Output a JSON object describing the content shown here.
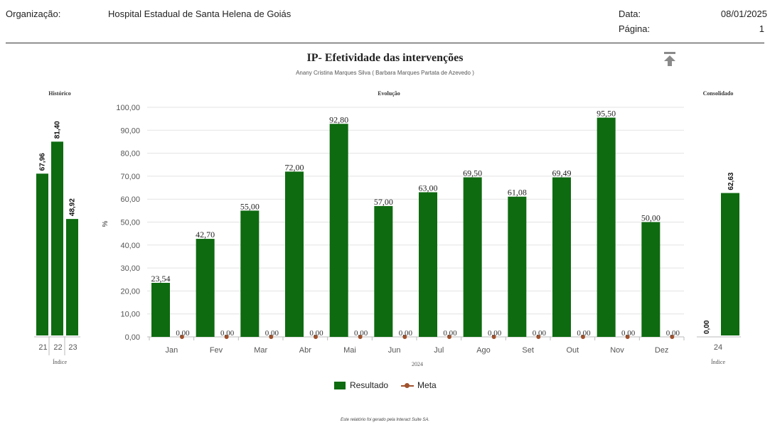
{
  "header": {
    "org_label": "Organização:",
    "org_value": "Hospital Estadual de Santa Helena de Goiás",
    "date_label": "Data:",
    "date_value": "08/01/2025",
    "page_label": "Página:",
    "page_value": "1"
  },
  "colors": {
    "resultado": "#0e6b10",
    "meta": "#a0522d",
    "grid": "#e3e3e3",
    "axis": "#bbbbbb"
  },
  "icons": {
    "print": "arrow-up-to-line-icon"
  },
  "footer": "Este relatório foi gerado pela Interact Suite SA.",
  "legend": [
    {
      "label": "Resultado"
    },
    {
      "label": "Meta"
    }
  ],
  "chart_data": [
    {
      "type": "bar",
      "title": "Histórico",
      "xlabel": "Índice",
      "categories": [
        "21",
        "22",
        "23"
      ],
      "series": [
        {
          "name": "Resultado",
          "values": [
            67.96,
            81.4,
            48.92
          ]
        }
      ],
      "value_labels": [
        "67,96",
        "81,40",
        "48,92"
      ],
      "ylim": [
        0,
        100
      ]
    },
    {
      "type": "bar",
      "title": "IP- Efetividade das intervenções",
      "subtitle": "Anany Cristina Marques Silva ( Barbara Marques Partata de Azevedo )",
      "panel_title": "Evolução",
      "xlabel": "2024",
      "ylabel": "%",
      "categories": [
        "Jan",
        "Fev",
        "Mar",
        "Abr",
        "Mai",
        "Jun",
        "Jul",
        "Ago",
        "Set",
        "Out",
        "Nov",
        "Dez"
      ],
      "yticks": [
        "0,00",
        "10,00",
        "20,00",
        "30,00",
        "40,00",
        "50,00",
        "60,00",
        "70,00",
        "80,00",
        "90,00",
        "100,00"
      ],
      "ylim": [
        0,
        100
      ],
      "grid": true,
      "series": [
        {
          "name": "Resultado",
          "values": [
            23.54,
            42.7,
            55.0,
            72.0,
            92.8,
            57.0,
            63.0,
            69.5,
            61.08,
            69.49,
            95.5,
            50.0
          ],
          "labels": [
            "23,54",
            "42,70",
            "55,00",
            "72,00",
            "92,80",
            "57,00",
            "63,00",
            "69,50",
            "61,08",
            "69,49",
            "95,50",
            "50,00"
          ]
        },
        {
          "name": "Meta",
          "values": [
            0,
            0,
            0,
            0,
            0,
            0,
            0,
            0,
            0,
            0,
            0,
            0
          ],
          "labels": [
            "0,00",
            "0,00",
            "0,00",
            "0,00",
            "0,00",
            "0,00",
            "0,00",
            "0,00",
            "0,00",
            "0,00",
            "0,00",
            "0,00"
          ]
        }
      ]
    },
    {
      "type": "bar",
      "title": "Consolidado",
      "xlabel": "Índice",
      "categories": [
        "24"
      ],
      "series": [
        {
          "name": "Meta",
          "values": [
            0.0
          ]
        },
        {
          "name": "Resultado",
          "values": [
            62.63
          ]
        }
      ],
      "value_labels": [
        "0,00",
        "62,63"
      ],
      "ylim": [
        0,
        100
      ]
    }
  ]
}
